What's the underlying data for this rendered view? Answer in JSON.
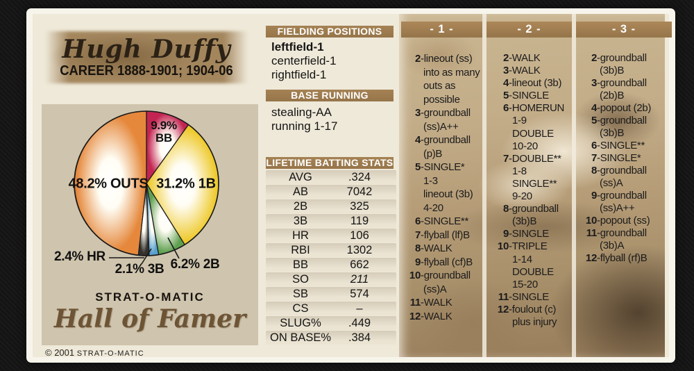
{
  "card": {
    "player_name": "Hugh Duffy",
    "career": "CAREER 1888-1901; 1904-06",
    "brand": "STRAT-O-MATIC",
    "brand_subtitle": "Hall of Famer",
    "copyright_symbol_year": "© 2001",
    "copyright_brand": "STRAT-O-MATIC"
  },
  "colors": {
    "header_bar": "#96754a",
    "card_cream": "#efe9d9",
    "pie_panel_tan": "#cfc4ad"
  },
  "fielding_positions": {
    "title": "FIELDING POSITIONS",
    "items": [
      {
        "text": "leftfield-1",
        "bold": true
      },
      {
        "text": "centerfield-1",
        "bold": false
      },
      {
        "text": "rightfield-1",
        "bold": false
      }
    ]
  },
  "base_running": {
    "title": "BASE RUNNING",
    "items": [
      {
        "text": "stealing-AA",
        "bold": false
      },
      {
        "text": "running 1-17",
        "bold": false
      }
    ]
  },
  "batting_stats": {
    "title": "LIFETIME BATTING STATS",
    "rows": [
      {
        "label": "AVG",
        "value": ".324",
        "italic": false
      },
      {
        "label": "AB",
        "value": "7042",
        "italic": false
      },
      {
        "label": "2B",
        "value": "325",
        "italic": false
      },
      {
        "label": "3B",
        "value": "119",
        "italic": false
      },
      {
        "label": "HR",
        "value": "106",
        "italic": false
      },
      {
        "label": "RBI",
        "value": "1302",
        "italic": false
      },
      {
        "label": "BB",
        "value": "662",
        "italic": false
      },
      {
        "label": "SO",
        "value": "211",
        "italic": true
      },
      {
        "label": "SB",
        "value": "574",
        "italic": false
      },
      {
        "label": "CS",
        "value": "–",
        "italic": false
      },
      {
        "label": "SLUG%",
        "value": ".449",
        "italic": false
      },
      {
        "label": "ON BASE%",
        "value": ".384",
        "italic": false
      }
    ]
  },
  "dice_columns": [
    {
      "header": "- 1 -",
      "entries": [
        {
          "num": "2",
          "lines": [
            "lineout (ss)",
            "into as many",
            "outs as",
            "possible"
          ]
        },
        {
          "num": "3",
          "lines": [
            "groundball",
            "(ss)A++"
          ]
        },
        {
          "num": "4",
          "lines": [
            "groundball",
            "(p)B"
          ]
        },
        {
          "num": "5",
          "lines": [
            "SINGLE*",
            "1-3",
            "lineout (3b)",
            "4-20"
          ]
        },
        {
          "num": "6",
          "lines": [
            "SINGLE**"
          ]
        },
        {
          "num": "7",
          "lines": [
            "flyball (lf)B"
          ]
        },
        {
          "num": "8",
          "lines": [
            "WALK"
          ]
        },
        {
          "num": "9",
          "lines": [
            "flyball (cf)B"
          ]
        },
        {
          "num": "10",
          "lines": [
            "groundball",
            "(ss)A"
          ]
        },
        {
          "num": "11",
          "lines": [
            "WALK"
          ]
        },
        {
          "num": "12",
          "lines": [
            "WALK"
          ]
        }
      ]
    },
    {
      "header": "- 2 -",
      "entries": [
        {
          "num": "2",
          "lines": [
            "WALK"
          ]
        },
        {
          "num": "3",
          "lines": [
            "WALK"
          ]
        },
        {
          "num": "4",
          "lines": [
            "lineout (3b)"
          ]
        },
        {
          "num": "5",
          "lines": [
            "SINGLE"
          ]
        },
        {
          "num": "6",
          "lines": [
            "HOMERUN",
            "1-9",
            "DOUBLE",
            "10-20"
          ]
        },
        {
          "num": "7",
          "lines": [
            "DOUBLE**",
            "1-8",
            "SINGLE**",
            "9-20"
          ]
        },
        {
          "num": "8",
          "lines": [
            "groundball",
            "(3b)B"
          ]
        },
        {
          "num": "9",
          "lines": [
            "SINGLE"
          ]
        },
        {
          "num": "10",
          "lines": [
            "TRIPLE",
            "1-14",
            "DOUBLE",
            "15-20"
          ]
        },
        {
          "num": "11",
          "lines": [
            "SINGLE"
          ]
        },
        {
          "num": "12",
          "lines": [
            "foulout (c)",
            "plus injury"
          ]
        }
      ]
    },
    {
      "header": "- 3 -",
      "entries": [
        {
          "num": "2",
          "lines": [
            "groundball",
            "(3b)B"
          ]
        },
        {
          "num": "3",
          "lines": [
            "groundball",
            "(2b)B"
          ]
        },
        {
          "num": "4",
          "lines": [
            "popout (2b)"
          ]
        },
        {
          "num": "5",
          "lines": [
            "groundball",
            "(3b)B"
          ]
        },
        {
          "num": "6",
          "lines": [
            "SINGLE**"
          ]
        },
        {
          "num": "7",
          "lines": [
            "SINGLE*"
          ]
        },
        {
          "num": "8",
          "lines": [
            "groundball",
            "(ss)A"
          ]
        },
        {
          "num": "9",
          "lines": [
            "groundball",
            "(ss)A++"
          ]
        },
        {
          "num": "10",
          "lines": [
            "popout (ss)"
          ]
        },
        {
          "num": "11",
          "lines": [
            "groundball",
            "(3b)A"
          ]
        },
        {
          "num": "12",
          "lines": [
            "flyball (rf)B"
          ]
        }
      ]
    }
  ],
  "chart_data": {
    "type": "pie",
    "title": "",
    "start_angle_deg": 0,
    "direction": "clockwise",
    "slices": [
      {
        "name": "BB",
        "pct": 9.9,
        "color": "#c32452"
      },
      {
        "name": "1B",
        "pct": 31.2,
        "color": "#eec92b"
      },
      {
        "name": "2B",
        "pct": 6.2,
        "color": "#5f9f50"
      },
      {
        "name": "3B",
        "pct": 2.1,
        "color": "#5aa0cf"
      },
      {
        "name": "HR",
        "pct": 2.4,
        "color": "#33302c"
      },
      {
        "name": "OUTS",
        "pct": 48.2,
        "color": "#e5883c"
      }
    ],
    "labels": {
      "bb_pct": "9.9%",
      "bb": "BB",
      "b1": "31.2% 1B",
      "outs": "48.2% OUTS",
      "hr": "2.4% HR",
      "b3": "2.1% 3B",
      "b2": "6.2% 2B"
    }
  }
}
